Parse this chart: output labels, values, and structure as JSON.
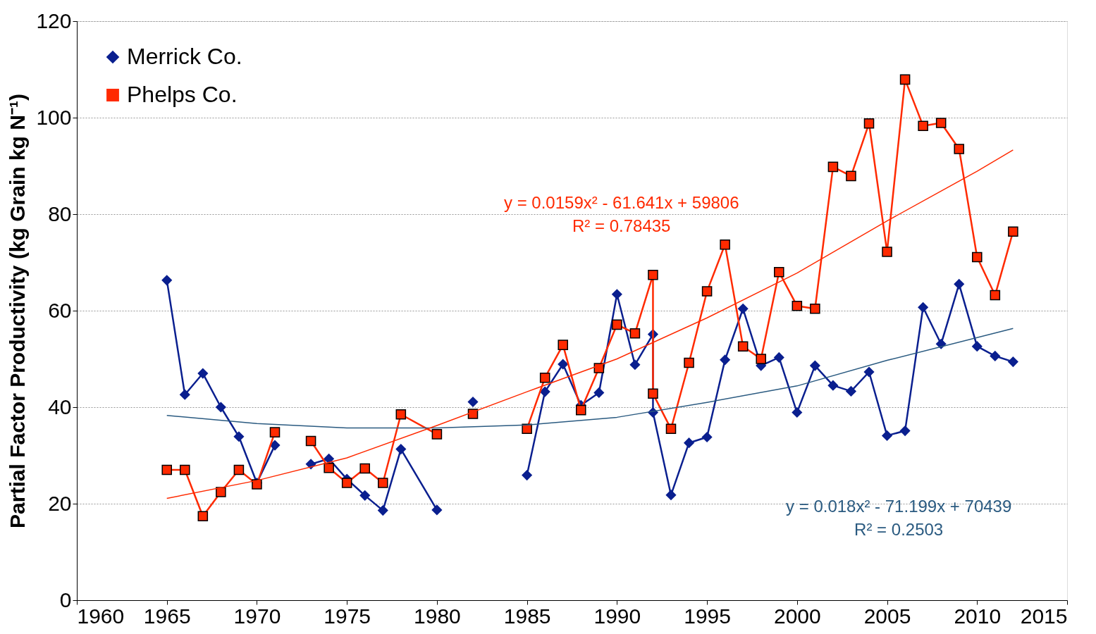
{
  "chart_data": {
    "type": "line",
    "ylabel": "Partial Factor Productivity (kg Grain kg N⁻¹)",
    "xlim": [
      1960,
      2015
    ],
    "xticks": [
      1960,
      1965,
      1970,
      1975,
      1980,
      1985,
      1990,
      1995,
      2000,
      2005,
      2010,
      2015
    ],
    "ylim": [
      0,
      120
    ],
    "yticks": [
      0,
      20,
      40,
      60,
      80,
      100,
      120
    ],
    "grid": "y",
    "legend": "top left",
    "line_style": "solid",
    "series": [
      {
        "name": "Merrick Co.",
        "color": "#0a1f8f",
        "marker": "diamond",
        "x": [
          1965,
          1966,
          1967,
          1968,
          1969,
          1970,
          1971,
          1972,
          1973,
          1974,
          1975,
          1976,
          1977,
          1978,
          1980,
          1981,
          1982,
          1983,
          1984,
          1985,
          1986,
          1987,
          1988,
          1989,
          1990,
          1991,
          1992,
          1992,
          1993,
          1994,
          1995,
          1996,
          1997,
          1998,
          1999,
          2000,
          2001,
          2002,
          2003,
          2004,
          2005,
          2006,
          2007,
          2008,
          2009,
          2010,
          2011,
          2012
        ],
        "values": [
          66.3,
          42.6,
          47.0,
          40.0,
          33.9,
          24.3,
          32.1,
          null,
          28.2,
          29.3,
          25.1,
          21.7,
          18.6,
          31.3,
          18.7,
          null,
          41.1,
          null,
          null,
          25.9,
          43.2,
          48.9,
          40.4,
          43.0,
          63.4,
          48.8,
          55.1,
          38.9,
          21.8,
          32.6,
          33.8,
          49.8,
          60.4,
          48.6,
          50.3,
          38.9,
          48.6,
          44.5,
          43.3,
          47.3,
          34.1,
          35.1,
          60.7,
          53.1,
          65.5,
          52.6,
          50.6,
          49.4
        ]
      },
      {
        "name": "Phelps Co.",
        "color": "#ff2a00",
        "marker": "square",
        "x": [
          1965,
          1966,
          1967,
          1968,
          1969,
          1970,
          1971,
          1972,
          1973,
          1974,
          1975,
          1976,
          1977,
          1978,
          1980,
          1981,
          1982,
          1983,
          1984,
          1985,
          1986,
          1987,
          1988,
          1989,
          1990,
          1991,
          1992,
          1992,
          1993,
          1994,
          1995,
          1996,
          1997,
          1998,
          1999,
          2000,
          2001,
          2002,
          2003,
          2004,
          2005,
          2006,
          2007,
          2008,
          2009,
          2010,
          2011,
          2012
        ],
        "values": [
          27.0,
          27.0,
          17.4,
          22.4,
          27.0,
          24.0,
          34.8,
          null,
          33.0,
          27.4,
          24.3,
          27.3,
          24.3,
          38.5,
          34.4,
          null,
          38.6,
          null,
          null,
          35.5,
          46.1,
          52.9,
          39.4,
          48.1,
          57.1,
          55.3,
          67.4,
          42.8,
          35.5,
          49.2,
          64.0,
          73.7,
          52.6,
          50.0,
          68.0,
          61.0,
          60.4,
          89.8,
          87.9,
          98.8,
          72.2,
          107.9,
          98.3,
          98.9,
          93.5,
          71.1,
          63.2,
          76.4
        ]
      },
      {
        "color": "#2a5a80",
        "marker": "none",
        "x": [
          1965,
          1970,
          1975,
          1980,
          1985,
          1990,
          1995,
          2000,
          2005,
          2012
        ],
        "values": [
          38.3,
          36.6,
          35.7,
          35.7,
          36.3,
          37.9,
          41.0,
          44.4,
          49.7,
          56.3
        ]
      },
      {
        "color": "#ff2a00",
        "marker": "none",
        "x": [
          1965,
          1970,
          1975,
          1980,
          1985,
          1990,
          1995,
          2000,
          2005,
          2010,
          2012
        ],
        "values": [
          21.1,
          24.8,
          29.5,
          36.2,
          43.2,
          50.0,
          58.5,
          67.8,
          78.6,
          88.9,
          93.3
        ]
      }
    ],
    "annotations": [
      "y = 0.0159x² - 61.641x + 59806",
      "R² = 0.78435",
      "y = 0.018x² - 71.199x + 70439",
      "R² = 0.2503"
    ]
  }
}
